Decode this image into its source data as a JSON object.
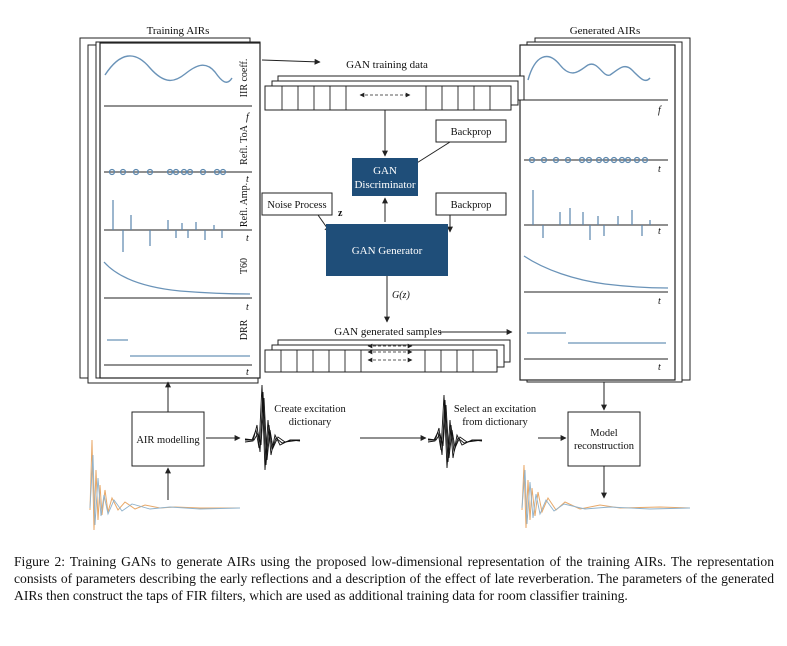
{
  "figure": {
    "training_airs_title": "Training AIRs",
    "generated_airs_title": "Generated AIRs",
    "panel_labels": {
      "iir": "IIR coeff.",
      "toa": "Refl. ToA",
      "amp": "Refl. Amp.",
      "t60": "T60",
      "drr": "DRR"
    },
    "axis_f": "f",
    "axis_t": "t",
    "gan_training_data": "GAN training data",
    "gan_generated_samples": "GAN generated samples",
    "backprop": "Backprop",
    "noise_process": "Noise Process",
    "z_label": "z",
    "gz_label": "G(z)",
    "discriminator_line1": "GAN",
    "discriminator_line2": "Discriminator",
    "generator": "GAN Generator",
    "air_modelling": "AIR modelling",
    "create_excitation_line1": "Create excitation",
    "create_excitation_line2": "dictionary",
    "select_excitation_line1": "Select an excitation",
    "select_excitation_line2": "from dictionary",
    "model_reconstruction_line1": "Model",
    "model_reconstruction_line2": "reconstruction"
  },
  "colors": {
    "gan_block": "#1f4e79",
    "curve": "#6a93b8",
    "waveform_orange": "#e8a868",
    "waveform_blue": "#8fb2cc"
  },
  "caption": "Figure 2: Training GANs to generate AIRs using the proposed low-dimensional representation of the training AIRs. The representation consists of parameters describing the early reflections and a description of the effect of late reverberation. The parameters of the generated AIRs then construct the taps of FIR filters, which are used as additional training data for room classifier training."
}
